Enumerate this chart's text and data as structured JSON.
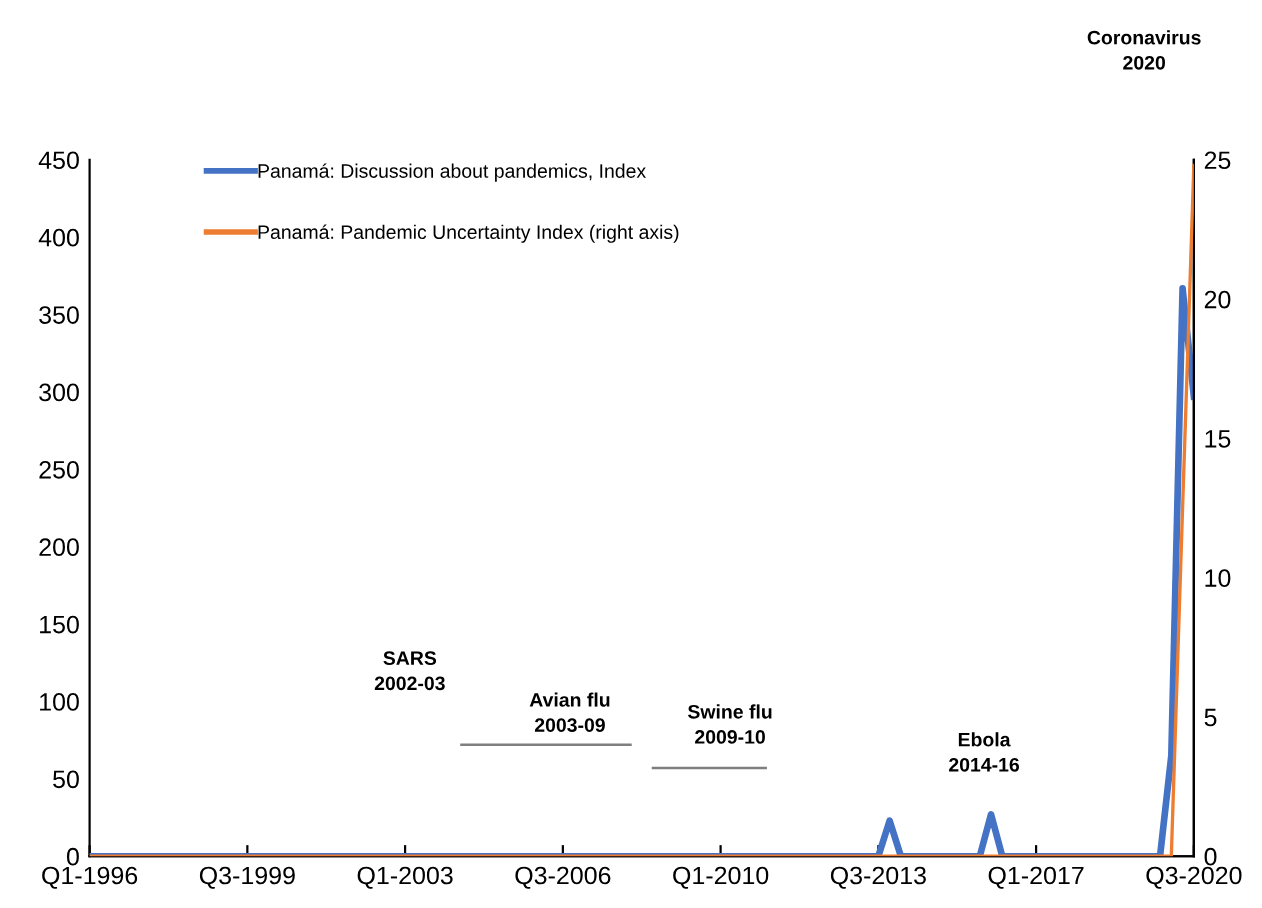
{
  "chart_data": {
    "type": "line",
    "categories": [
      "Q1-1996",
      null,
      null,
      null,
      null,
      null,
      null,
      null,
      null,
      null,
      null,
      null,
      null,
      null,
      "Q3-1999",
      null,
      null,
      null,
      null,
      null,
      null,
      null,
      null,
      null,
      null,
      null,
      null,
      null,
      "Q1-2003",
      null,
      null,
      null,
      null,
      null,
      null,
      null,
      null,
      null,
      null,
      null,
      null,
      null,
      "Q3-2006",
      null,
      null,
      null,
      null,
      null,
      null,
      null,
      null,
      null,
      null,
      null,
      null,
      null,
      "Q1-2010",
      null,
      null,
      null,
      null,
      null,
      null,
      null,
      null,
      null,
      null,
      null,
      null,
      null,
      "Q3-2013",
      null,
      null,
      null,
      null,
      null,
      null,
      null,
      null,
      null,
      null,
      null,
      null,
      null,
      "Q1-2017",
      null,
      null,
      null,
      null,
      null,
      null,
      null,
      null,
      null,
      null,
      null,
      null,
      null,
      "Q3-2020"
    ],
    "series": [
      {
        "name": "Panamá: Discussion about pandemics, Index",
        "color": "#4472c4",
        "values": [
          0,
          0,
          0,
          0,
          0,
          0,
          0,
          0,
          0,
          0,
          0,
          0,
          0,
          0,
          0,
          0,
          0,
          0,
          0,
          0,
          0,
          0,
          0,
          0,
          0,
          0,
          0,
          0,
          0,
          0,
          0,
          0,
          0,
          0,
          0,
          0,
          0,
          0,
          0,
          0,
          0,
          0,
          0,
          0,
          0,
          0,
          0,
          0,
          0,
          0,
          0,
          0,
          0,
          0,
          0,
          0,
          0,
          0,
          0,
          0,
          0,
          0,
          0,
          0,
          0,
          0,
          0,
          0,
          0,
          0,
          0,
          23,
          0,
          0,
          0,
          0,
          0,
          0,
          0,
          0,
          27,
          0,
          0,
          0,
          0,
          0,
          0,
          0,
          0,
          0,
          0,
          0,
          0,
          0,
          0,
          0,
          65,
          367,
          297
        ]
      },
      {
        "name": "Panamá: Pandemic Uncertainty Index (right axis)",
        "color": "#ed7d31",
        "axis": "y2",
        "values": [
          0,
          0,
          0,
          0,
          0,
          0,
          0,
          0,
          0,
          0,
          0,
          0,
          0,
          0,
          0,
          0,
          0,
          0,
          0,
          0,
          0,
          0,
          0,
          0,
          0,
          0,
          0,
          0,
          0,
          0,
          0,
          0,
          0,
          0,
          0,
          0,
          0,
          0,
          0,
          0,
          0,
          0,
          0,
          0,
          0,
          0,
          0,
          0,
          0,
          0,
          0,
          0,
          0,
          0,
          0,
          0,
          0,
          0,
          0,
          0,
          0,
          0,
          0,
          0,
          0,
          0,
          0,
          0,
          0,
          0,
          0,
          0,
          0,
          0,
          0,
          0,
          0,
          0,
          0,
          0,
          0,
          0,
          0,
          0,
          0,
          0,
          0,
          0,
          0,
          0,
          0,
          0,
          0,
          0,
          0,
          0,
          0,
          12.5,
          24.8
        ]
      },
      {
        "color": "#7f7f7f",
        "values": [
          null,
          null,
          null,
          null,
          null,
          null,
          null,
          null,
          null,
          null,
          null,
          null,
          null,
          null,
          null,
          null,
          null,
          null,
          null,
          null,
          null,
          null,
          null,
          null,
          null,
          null,
          null,
          null,
          null,
          null,
          null,
          null,
          null,
          72,
          72,
          72,
          72,
          72,
          72,
          72,
          72,
          72,
          72,
          72,
          72,
          72,
          72,
          72,
          72,
          null,
          null,
          null,
          null,
          null,
          null,
          null,
          null,
          null,
          null,
          null,
          null,
          null,
          null,
          null,
          null,
          null,
          null,
          null,
          null,
          null,
          null,
          null,
          null,
          null,
          null,
          null,
          null,
          null,
          null,
          null,
          null,
          null,
          null,
          null,
          null,
          null,
          null,
          null,
          null,
          null,
          null,
          null,
          null,
          null,
          null,
          null,
          null,
          null,
          null
        ]
      },
      {
        "color": "#7f7f7f",
        "values": [
          null,
          null,
          null,
          null,
          null,
          null,
          null,
          null,
          null,
          null,
          null,
          null,
          null,
          null,
          null,
          null,
          null,
          null,
          null,
          null,
          null,
          null,
          null,
          null,
          null,
          null,
          null,
          null,
          null,
          null,
          null,
          null,
          null,
          null,
          null,
          null,
          null,
          null,
          null,
          null,
          null,
          null,
          null,
          null,
          null,
          null,
          null,
          null,
          null,
          null,
          57,
          57,
          57,
          57,
          57,
          57,
          57,
          57,
          57,
          57,
          57,
          null,
          null,
          null,
          null,
          null,
          null,
          null,
          null,
          null,
          null,
          null,
          null,
          null,
          null,
          null,
          null,
          null,
          null,
          null,
          null,
          null,
          null,
          null,
          null,
          null,
          null,
          null,
          null,
          null,
          null,
          null,
          null,
          null,
          null,
          null,
          null,
          null,
          null
        ]
      }
    ],
    "ylim": [
      0,
      450
    ],
    "yticks": [
      0,
      50,
      100,
      150,
      200,
      250,
      300,
      350,
      400,
      450
    ],
    "y2lim": [
      0,
      25
    ],
    "y2ticks": [
      0,
      5,
      10,
      15,
      20,
      25
    ],
    "annotations": [
      "SARS\n2002-03",
      "Avian flu\n2003-09",
      "Swine flu\n2009-10",
      "Ebola\n2014-16",
      "Coronavirus\n2020"
    ],
    "legend": "top left",
    "grid": false
  }
}
